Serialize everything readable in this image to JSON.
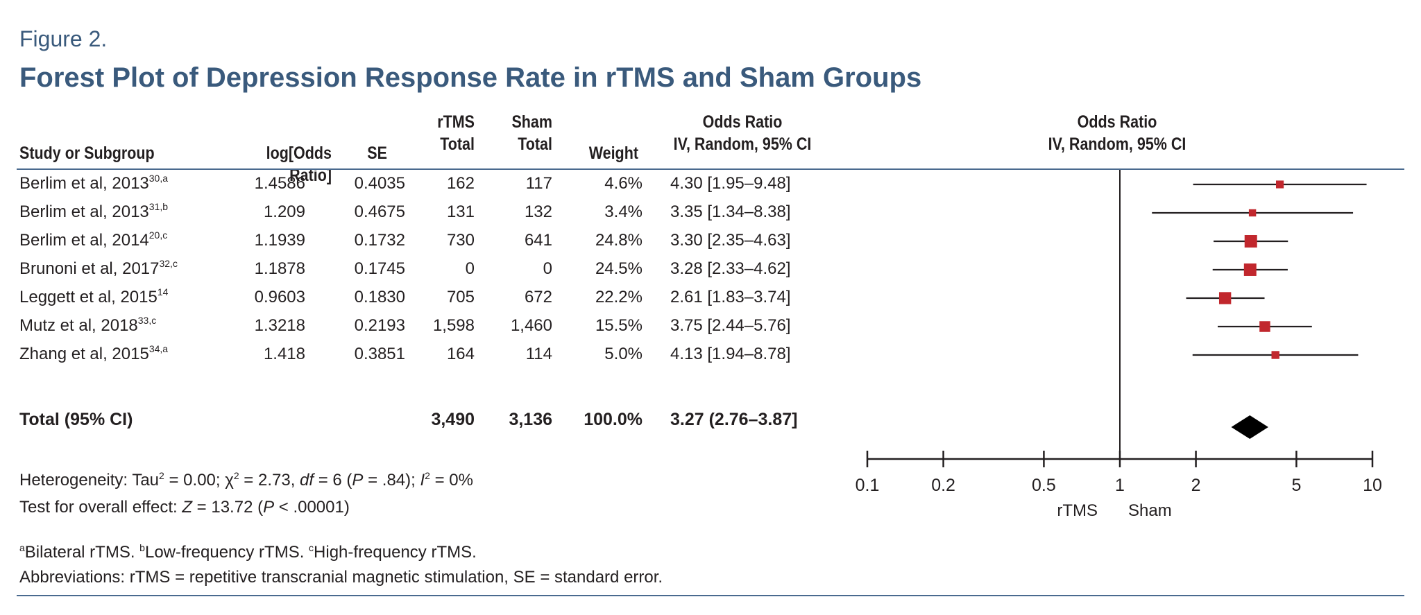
{
  "figure_label": "Figure 2.",
  "figure_title": "Forest Plot of Depression Response Rate in rTMS and Sham Groups",
  "headers": {
    "study": "Study or Subgroup",
    "log_or": "log[Odds Ratio]",
    "se": "SE",
    "rtms_line1": "rTMS",
    "rtms_line2": "Total",
    "sham_line1": "Sham",
    "sham_line2": "Total",
    "weight": "Weight",
    "or_line1": "Odds Ratio",
    "or_line2": "IV, Random, 95% CI",
    "plot_line1": "Odds Ratio",
    "plot_line2": "IV, Random, 95% CI"
  },
  "studies": [
    {
      "name": "Berlim et al, 2013",
      "ref": "30,a",
      "log_or": "1.4586",
      "se": "0.4035",
      "rtms": "162",
      "sham": "117",
      "weight": "4.6%",
      "ci": "4.30 [1.95–9.48]"
    },
    {
      "name": "Berlim et al, 2013",
      "ref": "31,b",
      "log_or": "1.209",
      "se": "0.4675",
      "rtms": "131",
      "sham": "132",
      "weight": "3.4%",
      "ci": "3.35 [1.34–8.38]"
    },
    {
      "name": "Berlim et al, 2014",
      "ref": "20,c",
      "log_or": "1.1939",
      "se": "0.1732",
      "rtms": "730",
      "sham": "641",
      "weight": "24.8%",
      "ci": "3.30 [2.35–4.63]"
    },
    {
      "name": "Brunoni et al, 2017",
      "ref": "32,c",
      "log_or": "1.1878",
      "se": "0.1745",
      "rtms": "0",
      "sham": "0",
      "weight": "24.5%",
      "ci": "3.28 [2.33–4.62]"
    },
    {
      "name": "Leggett et al, 2015",
      "ref": "14",
      "log_or": "0.9603",
      "se": "0.1830",
      "rtms": "705",
      "sham": "672",
      "weight": "22.2%",
      "ci": "2.61 [1.83–3.74]"
    },
    {
      "name": "Mutz et al, 2018",
      "ref": "33,c",
      "log_or": "1.3218",
      "se": "0.2193",
      "rtms": "1,598",
      "sham": "1,460",
      "weight": "15.5%",
      "ci": "3.75 [2.44–5.76]"
    },
    {
      "name": "Zhang et al, 2015",
      "ref": "34,a",
      "log_or": "1.418",
      "se": "0.3851",
      "rtms": "164",
      "sham": "114",
      "weight": "5.0%",
      "ci": "4.13 [1.94–8.78]"
    }
  ],
  "total": {
    "label": "Total (95% CI)",
    "rtms": "3,490",
    "sham": "3,136",
    "weight": "100.0%",
    "ci": "3.27 (2.76–3.87]"
  },
  "heterogeneity": {
    "pre": "Heterogeneity: Tau",
    "sup": "2",
    "post1": " = 0.00; χ",
    "sup2": "2",
    "post2": " = 2.73, ",
    "df": "df",
    "post3": " = 6 (",
    "p": "P",
    "post4": " = .84); ",
    "i": "I",
    "sup3": "2",
    "post5": " = 0%"
  },
  "overall_effect": {
    "pre": "Test for overall effect: ",
    "z": "Z",
    "mid": " = 13.72 (",
    "p": "P",
    "post": " < .00001)"
  },
  "notes": {
    "a_sup": "a",
    "a_text": "Bilateral rTMS. ",
    "b_sup": "b",
    "b_text": "Low-frequency rTMS. ",
    "c_sup": "c",
    "c_text": "High-frequency rTMS.",
    "abbrev": "Abbreviations: rTMS = repetitive transcranial magnetic stimulation, SE = standard error."
  },
  "chart_data": {
    "type": "forest",
    "x_scale": "log",
    "xlim": [
      0.1,
      10
    ],
    "x_ticks": [
      0.1,
      0.2,
      0.5,
      1,
      2,
      5,
      10
    ],
    "x_tick_labels": [
      "0.1",
      "0.2",
      "0.5",
      "1",
      "2",
      "5",
      "10"
    ],
    "reference_line": 1,
    "left_label": "rTMS",
    "right_label": "Sham",
    "points": [
      {
        "or": 4.3,
        "lo": 1.95,
        "hi": 9.48,
        "weight": 4.6
      },
      {
        "or": 3.35,
        "lo": 1.34,
        "hi": 8.38,
        "weight": 3.4
      },
      {
        "or": 3.3,
        "lo": 2.35,
        "hi": 4.63,
        "weight": 24.8
      },
      {
        "or": 3.28,
        "lo": 2.33,
        "hi": 4.62,
        "weight": 24.5
      },
      {
        "or": 2.61,
        "lo": 1.83,
        "hi": 3.74,
        "weight": 22.2
      },
      {
        "or": 3.75,
        "lo": 2.44,
        "hi": 5.76,
        "weight": 15.5
      },
      {
        "or": 4.13,
        "lo": 1.94,
        "hi": 8.78,
        "weight": 5.0
      }
    ],
    "pooled": {
      "or": 3.27,
      "lo": 2.76,
      "hi": 3.87
    },
    "marker_color": "#c1272d",
    "line_color": "#231f20"
  }
}
